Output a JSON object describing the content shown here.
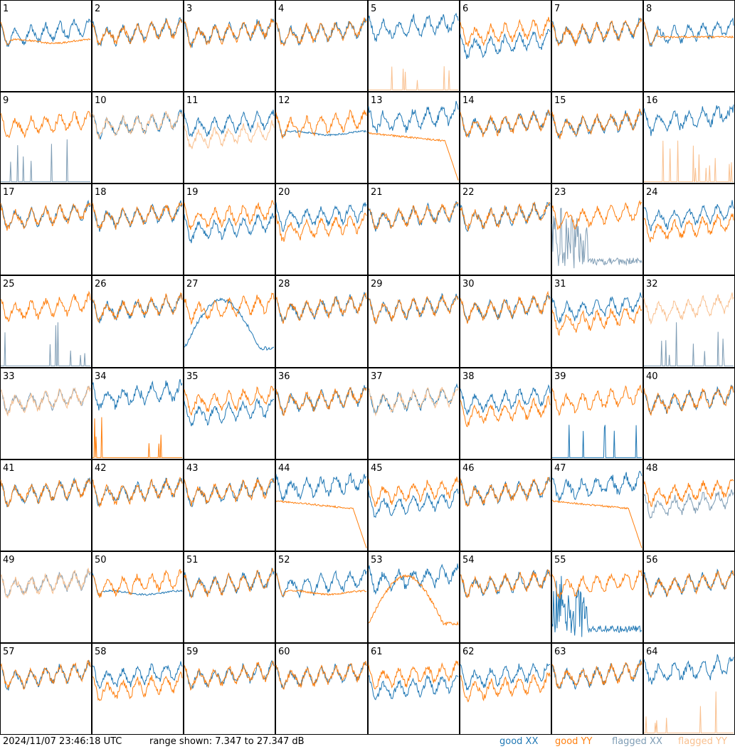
{
  "timestamp": "2024/11/07 23:46:18 UTC",
  "range_text": "range shown: 7.347 to 27.347 dB",
  "legend": [
    {
      "label": "good XX",
      "color": "#1f77b4"
    },
    {
      "label": "good YY",
      "color": "#ff7f0e"
    },
    {
      "label": "flagged XX",
      "color": "#7f9db5"
    },
    {
      "label": "flagged YY",
      "color": "#f9c08f"
    }
  ],
  "chart_data": {
    "type": "line",
    "title": "",
    "grid_rows": 8,
    "grid_cols": 8,
    "y_unit": "dB",
    "ylim": [
      7.347,
      27.347
    ],
    "panels": [
      {
        "label": "1",
        "xx": "good",
        "yy": "good",
        "xx_style": "normal",
        "yy_style": "sag"
      },
      {
        "label": "2",
        "xx": "good",
        "yy": "good",
        "xx_style": "normal",
        "yy_style": "normal"
      },
      {
        "label": "3",
        "xx": "good",
        "yy": "good",
        "xx_style": "normal",
        "yy_style": "normal"
      },
      {
        "label": "4",
        "xx": "good",
        "yy": "good",
        "xx_style": "normal",
        "yy_style": "normal"
      },
      {
        "label": "5",
        "xx": "good",
        "yy": "flagged",
        "xx_style": "high",
        "yy_style": "spikes"
      },
      {
        "label": "6",
        "xx": "good",
        "yy": "good",
        "xx_style": "low",
        "yy_style": "normal"
      },
      {
        "label": "7",
        "xx": "good",
        "yy": "good",
        "xx_style": "normal",
        "yy_style": "normal"
      },
      {
        "label": "8",
        "xx": "good",
        "yy": "good",
        "xx_style": "normal",
        "yy_style": "flat"
      },
      {
        "label": "9",
        "xx": "flagged",
        "yy": "good",
        "xx_style": "spikes",
        "yy_style": "normal"
      },
      {
        "label": "10",
        "xx": "good",
        "yy": "flagged",
        "xx_style": "normal",
        "yy_style": "normal"
      },
      {
        "label": "11",
        "xx": "good",
        "yy": "flagged",
        "xx_style": "normal",
        "yy_style": "low"
      },
      {
        "label": "12",
        "xx": "good",
        "yy": "good",
        "xx_style": "sag",
        "yy_style": "normal"
      },
      {
        "label": "13",
        "xx": "good",
        "yy": "good",
        "xx_style": "high",
        "yy_style": "drop"
      },
      {
        "label": "14",
        "xx": "good",
        "yy": "good",
        "xx_style": "normal",
        "yy_style": "normal"
      },
      {
        "label": "15",
        "xx": "good",
        "yy": "good",
        "xx_style": "normal",
        "yy_style": "normal"
      },
      {
        "label": "16",
        "xx": "good",
        "yy": "flagged",
        "xx_style": "high",
        "yy_style": "spikes"
      },
      {
        "label": "17",
        "xx": "good",
        "yy": "good",
        "xx_style": "normal",
        "yy_style": "normal"
      },
      {
        "label": "18",
        "xx": "good",
        "yy": "good",
        "xx_style": "normal",
        "yy_style": "normal"
      },
      {
        "label": "19",
        "xx": "good",
        "yy": "good",
        "xx_style": "low",
        "yy_style": "normal"
      },
      {
        "label": "20",
        "xx": "good",
        "yy": "good",
        "xx_style": "normal",
        "yy_style": "low"
      },
      {
        "label": "21",
        "xx": "good",
        "yy": "good",
        "xx_style": "normal",
        "yy_style": "normal"
      },
      {
        "label": "22",
        "xx": "good",
        "yy": "good",
        "xx_style": "normal",
        "yy_style": "normal"
      },
      {
        "label": "23",
        "xx": "flagged",
        "yy": "good",
        "xx_style": "noisy_low",
        "yy_style": "normal"
      },
      {
        "label": "24",
        "xx": "good",
        "yy": "good",
        "xx_style": "normal",
        "yy_style": "low"
      },
      {
        "label": "25",
        "xx": "flagged",
        "yy": "good",
        "xx_style": "spikes",
        "yy_style": "normal"
      },
      {
        "label": "26",
        "xx": "good",
        "yy": "good",
        "xx_style": "normal",
        "yy_style": "normal"
      },
      {
        "label": "27",
        "xx": "good",
        "yy": "good",
        "xx_style": "dip",
        "yy_style": "normal"
      },
      {
        "label": "28",
        "xx": "good",
        "yy": "good",
        "xx_style": "normal",
        "yy_style": "normal"
      },
      {
        "label": "29",
        "xx": "good",
        "yy": "good",
        "xx_style": "normal",
        "yy_style": "normal"
      },
      {
        "label": "30",
        "xx": "good",
        "yy": "good",
        "xx_style": "normal",
        "yy_style": "normal"
      },
      {
        "label": "31",
        "xx": "good",
        "yy": "good",
        "xx_style": "normal",
        "yy_style": "low"
      },
      {
        "label": "32",
        "xx": "flagged",
        "yy": "flagged",
        "xx_style": "spikes",
        "yy_style": "normal"
      },
      {
        "label": "33",
        "xx": "flagged",
        "yy": "flagged",
        "xx_style": "normal",
        "yy_style": "normal"
      },
      {
        "label": "34",
        "xx": "good",
        "yy": "good",
        "xx_style": "high",
        "yy_style": "spikes"
      },
      {
        "label": "35",
        "xx": "good",
        "yy": "good",
        "xx_style": "low",
        "yy_style": "normal"
      },
      {
        "label": "36",
        "xx": "good",
        "yy": "good",
        "xx_style": "normal",
        "yy_style": "normal"
      },
      {
        "label": "37",
        "xx": "good",
        "yy": "flagged",
        "xx_style": "normal",
        "yy_style": "normal"
      },
      {
        "label": "38",
        "xx": "good",
        "yy": "good",
        "xx_style": "normal",
        "yy_style": "low"
      },
      {
        "label": "39",
        "xx": "good",
        "yy": "good",
        "xx_style": "spikes",
        "yy_style": "normal"
      },
      {
        "label": "40",
        "xx": "good",
        "yy": "good",
        "xx_style": "normal",
        "yy_style": "normal"
      },
      {
        "label": "41",
        "xx": "good",
        "yy": "good",
        "xx_style": "normal",
        "yy_style": "normal"
      },
      {
        "label": "42",
        "xx": "good",
        "yy": "good",
        "xx_style": "normal",
        "yy_style": "normal"
      },
      {
        "label": "43",
        "xx": "good",
        "yy": "good",
        "xx_style": "normal",
        "yy_style": "normal"
      },
      {
        "label": "44",
        "xx": "good",
        "yy": "good",
        "xx_style": "high",
        "yy_style": "drop"
      },
      {
        "label": "45",
        "xx": "good",
        "yy": "good",
        "xx_style": "low",
        "yy_style": "normal"
      },
      {
        "label": "46",
        "xx": "good",
        "yy": "good",
        "xx_style": "normal",
        "yy_style": "normal"
      },
      {
        "label": "47",
        "xx": "good",
        "yy": "good",
        "xx_style": "high",
        "yy_style": "drop"
      },
      {
        "label": "48",
        "xx": "flagged",
        "yy": "good",
        "xx_style": "low",
        "yy_style": "normal"
      },
      {
        "label": "49",
        "xx": "flagged",
        "yy": "flagged",
        "xx_style": "normal",
        "yy_style": "normal"
      },
      {
        "label": "50",
        "xx": "good",
        "yy": "good",
        "xx_style": "sag",
        "yy_style": "normal"
      },
      {
        "label": "51",
        "xx": "good",
        "yy": "good",
        "xx_style": "normal",
        "yy_style": "normal"
      },
      {
        "label": "52",
        "xx": "good",
        "yy": "good",
        "xx_style": "normal",
        "yy_style": "sag"
      },
      {
        "label": "53",
        "xx": "good",
        "yy": "good",
        "xx_style": "high",
        "yy_style": "dip"
      },
      {
        "label": "54",
        "xx": "good",
        "yy": "good",
        "xx_style": "normal",
        "yy_style": "normal"
      },
      {
        "label": "55",
        "xx": "good",
        "yy": "good",
        "xx_style": "noisy_low",
        "yy_style": "normal"
      },
      {
        "label": "56",
        "xx": "good",
        "yy": "good",
        "xx_style": "normal",
        "yy_style": "normal"
      },
      {
        "label": "57",
        "xx": "good",
        "yy": "good",
        "xx_style": "normal",
        "yy_style": "normal"
      },
      {
        "label": "58",
        "xx": "good",
        "yy": "good",
        "xx_style": "normal",
        "yy_style": "low"
      },
      {
        "label": "59",
        "xx": "good",
        "yy": "good",
        "xx_style": "normal",
        "yy_style": "normal"
      },
      {
        "label": "60",
        "xx": "good",
        "yy": "good",
        "xx_style": "normal",
        "yy_style": "normal"
      },
      {
        "label": "61",
        "xx": "good",
        "yy": "good",
        "xx_style": "low",
        "yy_style": "normal"
      },
      {
        "label": "62",
        "xx": "good",
        "yy": "good",
        "xx_style": "normal",
        "yy_style": "low"
      },
      {
        "label": "63",
        "xx": "good",
        "yy": "good",
        "xx_style": "normal",
        "yy_style": "normal"
      },
      {
        "label": "64",
        "xx": "good",
        "yy": "flagged",
        "xx_style": "high",
        "yy_style": "spikes"
      }
    ]
  }
}
